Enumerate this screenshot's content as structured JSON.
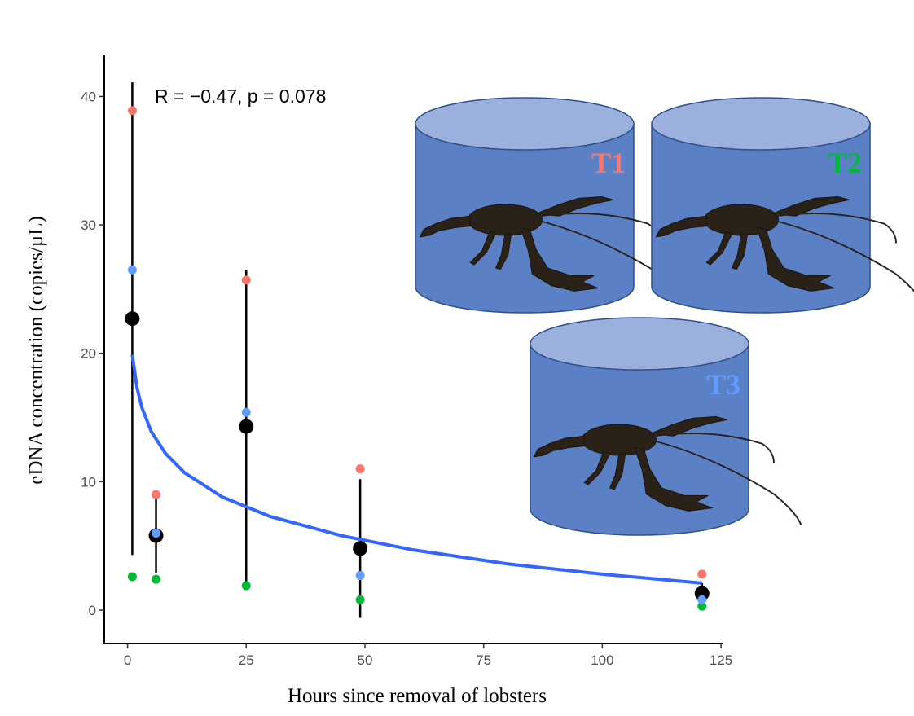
{
  "chart_data": {
    "type": "scatter",
    "x_label": "Hours since removal of lobsters",
    "y_label": "eDNA concentration (copies/µL)",
    "annotation": "R = −0.47, p = 0.078",
    "x": [
      1,
      6,
      25,
      49,
      121
    ],
    "series": [
      {
        "name": "T1",
        "color": "#F8766D",
        "values": [
          38.9,
          9.0,
          25.7,
          11.0,
          2.8
        ]
      },
      {
        "name": "T2",
        "color": "#00BA38",
        "values": [
          2.6,
          2.4,
          1.9,
          0.8,
          0.3
        ]
      },
      {
        "name": "T3",
        "color": "#619CFF",
        "values": [
          26.5,
          6.0,
          15.4,
          2.7,
          0.8
        ]
      }
    ],
    "mean": {
      "color": "#000000",
      "values": [
        22.7,
        5.8,
        14.3,
        4.8,
        1.3
      ],
      "errors": [
        18.4,
        2.9,
        12.2,
        5.4,
        0.8
      ]
    },
    "fit": {
      "color": "#3366FF",
      "x": [
        1,
        2,
        3,
        5,
        8,
        12,
        20,
        30,
        45,
        60,
        80,
        100,
        121
      ],
      "values": [
        19.9,
        17.3,
        15.8,
        13.9,
        12.2,
        10.7,
        8.8,
        7.3,
        5.8,
        4.7,
        3.6,
        2.8,
        2.1
      ]
    },
    "xlim": [
      -4.9,
      125.5
    ],
    "ylim": [
      -2.6,
      43.2
    ],
    "xticks": [
      0,
      25,
      50,
      75,
      100,
      125
    ],
    "yticks": [
      0,
      10,
      20,
      30,
      40
    ],
    "grid": false
  }
}
